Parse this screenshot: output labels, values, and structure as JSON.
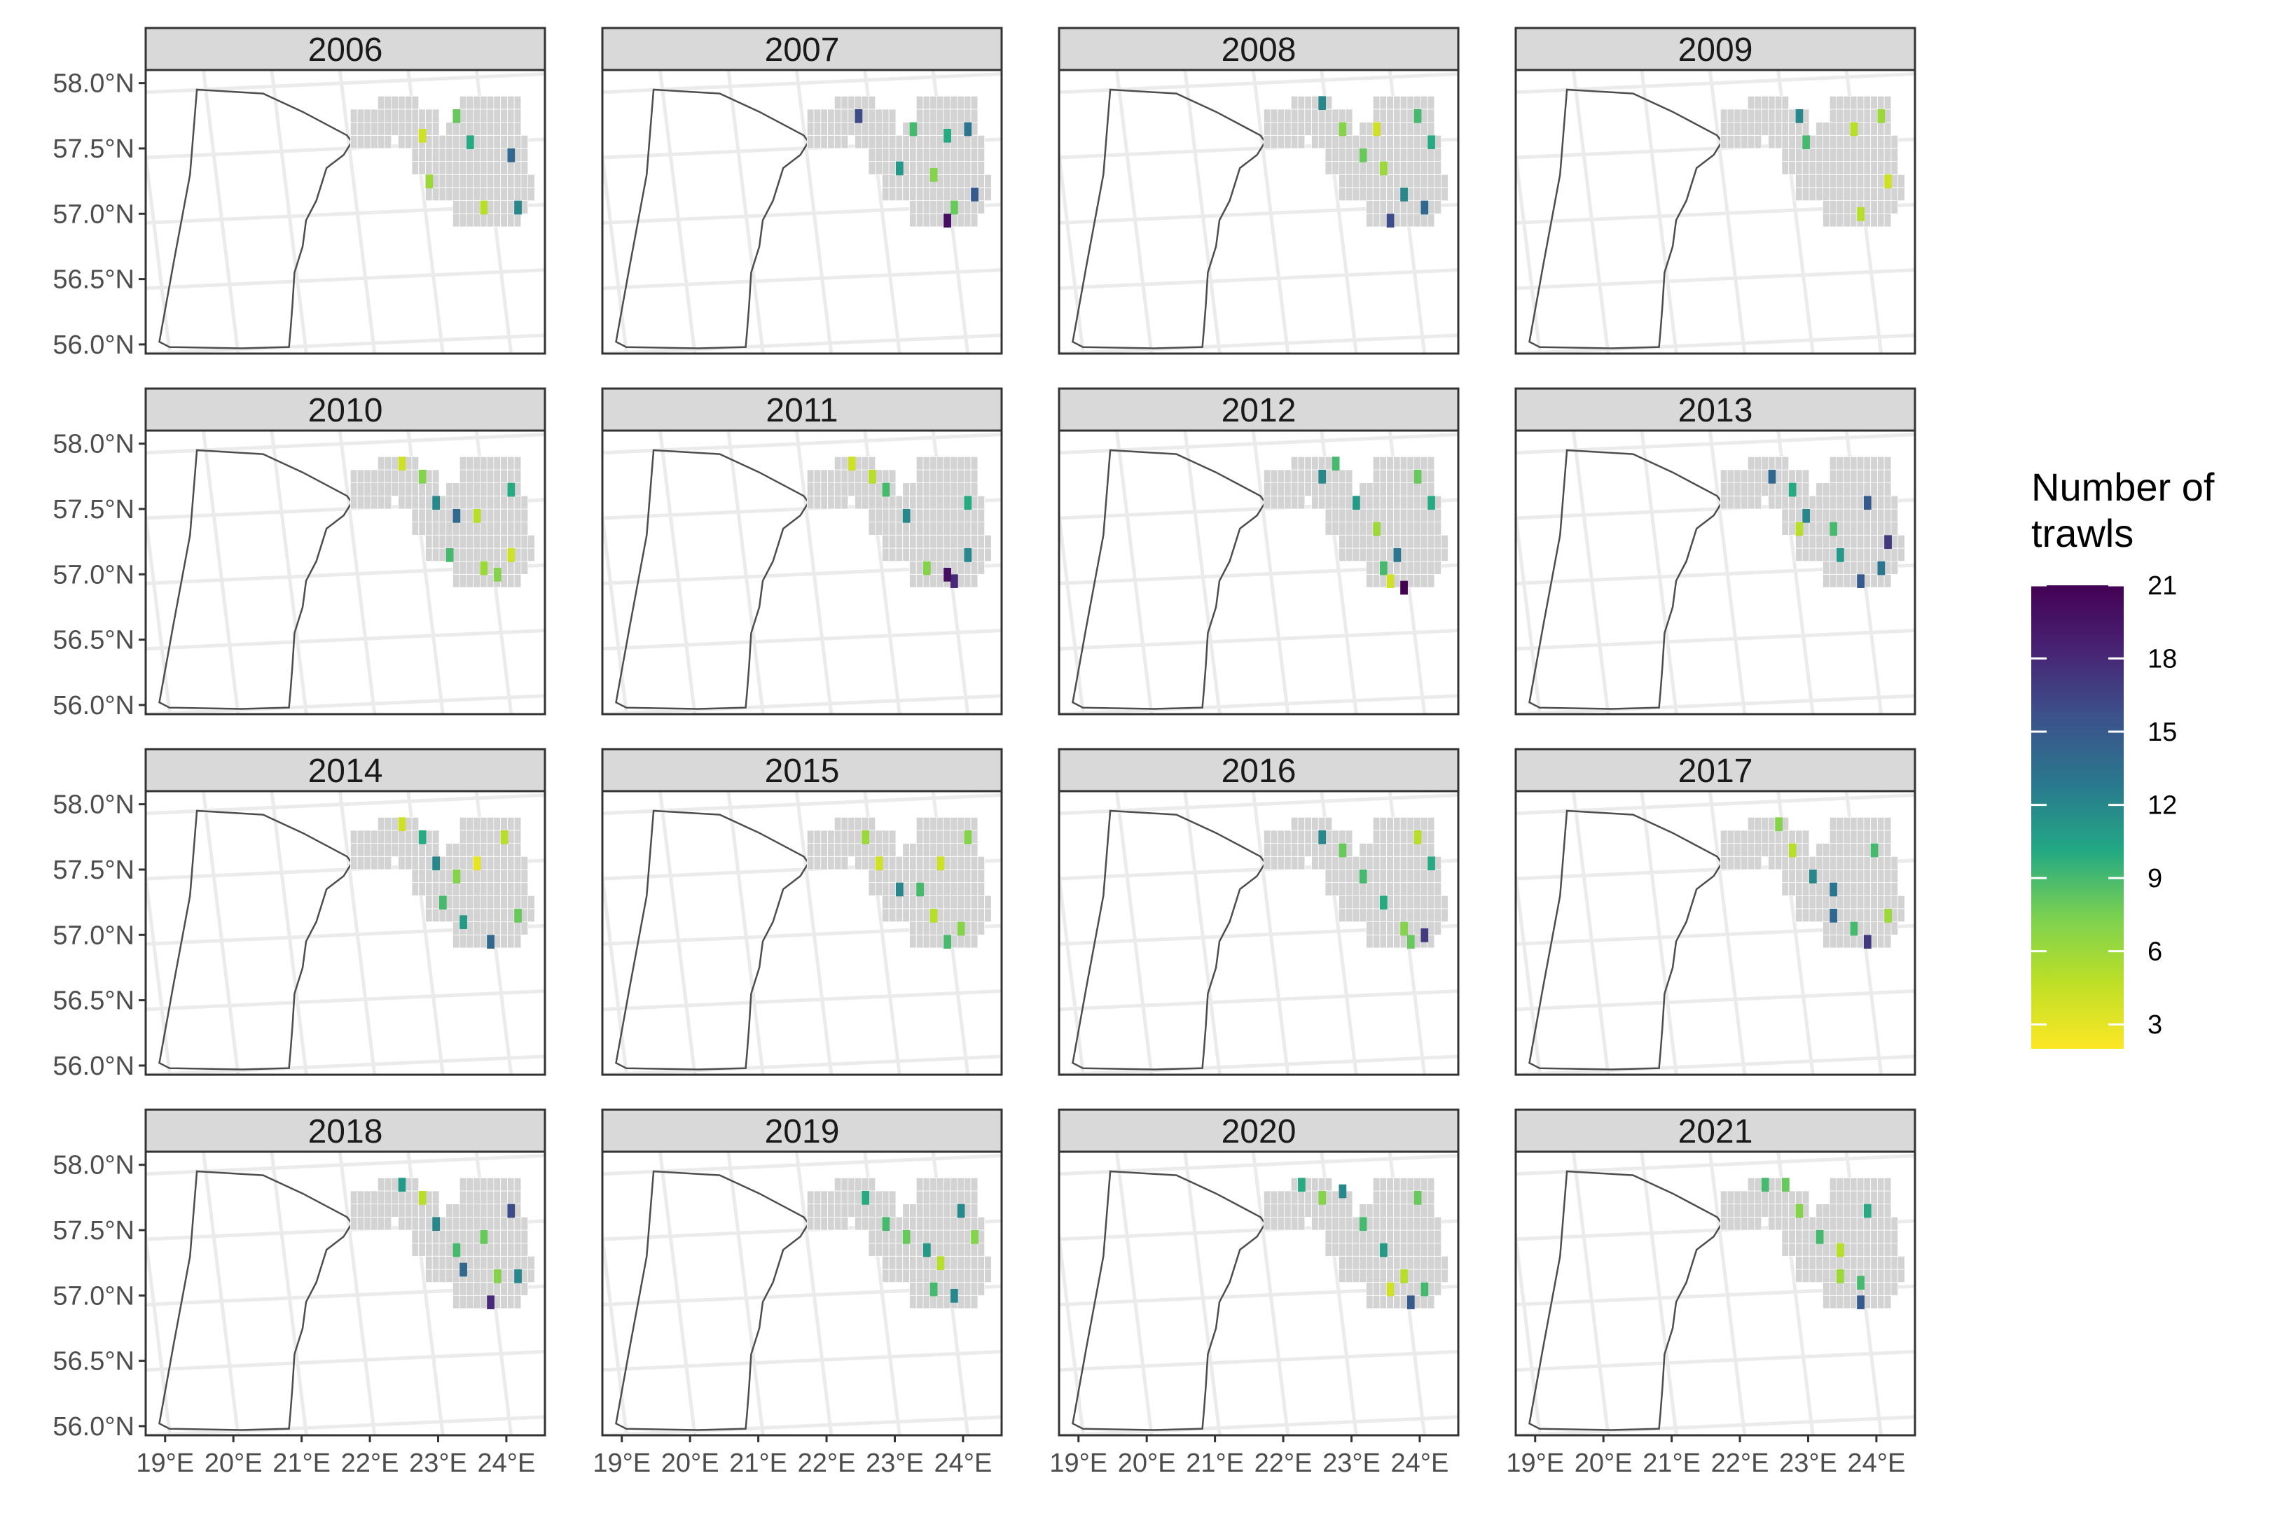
{
  "legend": {
    "title_lines": [
      "Number of",
      "trawls"
    ],
    "breaks": [
      3,
      6,
      9,
      12,
      15,
      18,
      21
    ],
    "limits": [
      2,
      21
    ],
    "palette": [
      "#FDE725",
      "#BDDF26",
      "#7AD151",
      "#22A884",
      "#2A788E",
      "#3B528B",
      "#482475",
      "#440154"
    ],
    "palette_name": "viridis (reversed)"
  },
  "axes": {
    "y_ticks": [
      "58.0°N",
      "57.5°N",
      "57.0°N",
      "56.5°N",
      "56.0°N"
    ],
    "x_ticks": [
      "19°E",
      "20°E",
      "21°E",
      "22°E",
      "23°E",
      "24°E"
    ]
  },
  "colors": {
    "strip_fill": "#D9D9D9",
    "panel_border": "#333333",
    "grid": "#EBEBEB",
    "cell_empty": "#D3D3D3",
    "outline": "#4D4D4D"
  },
  "map_data": {
    "type": "faceted-choropleth",
    "value_name": "Number of trawls",
    "facets": [
      {
        "year": "2006",
        "cells": [
          [
            23.4,
            57.7,
            8
          ],
          [
            23.6,
            57.5,
            10
          ],
          [
            24.2,
            57.4,
            14
          ],
          [
            23.0,
            57.2,
            6
          ],
          [
            24.3,
            57.0,
            12
          ],
          [
            23.8,
            57.0,
            5
          ],
          [
            22.9,
            57.55,
            4
          ]
        ]
      },
      {
        "year": "2007",
        "cells": [
          [
            22.6,
            57.7,
            16
          ],
          [
            23.4,
            57.6,
            9
          ],
          [
            23.9,
            57.55,
            10
          ],
          [
            24.2,
            57.6,
            13
          ],
          [
            23.2,
            57.3,
            11
          ],
          [
            23.7,
            57.25,
            7
          ],
          [
            24.0,
            57.0,
            8
          ],
          [
            24.3,
            57.1,
            15
          ],
          [
            23.9,
            56.9,
            20
          ]
        ]
      },
      {
        "year": "2008",
        "cells": [
          [
            22.7,
            57.8,
            12
          ],
          [
            23.0,
            57.6,
            7
          ],
          [
            23.5,
            57.6,
            4
          ],
          [
            24.1,
            57.7,
            9
          ],
          [
            24.3,
            57.5,
            10
          ],
          [
            23.6,
            57.3,
            6
          ],
          [
            23.9,
            57.1,
            12
          ],
          [
            24.2,
            57.0,
            14
          ],
          [
            23.7,
            56.9,
            16
          ],
          [
            23.3,
            57.4,
            8
          ]
        ]
      },
      {
        "year": "2009",
        "cells": [
          [
            23.0,
            57.7,
            12
          ],
          [
            23.8,
            57.6,
            5
          ],
          [
            24.2,
            57.7,
            6
          ],
          [
            23.1,
            57.5,
            9
          ],
          [
            24.3,
            57.2,
            4
          ],
          [
            23.9,
            56.95,
            5
          ]
        ]
      },
      {
        "year": "2010",
        "cells": [
          [
            22.6,
            57.8,
            4
          ],
          [
            22.9,
            57.7,
            7
          ],
          [
            23.1,
            57.5,
            12
          ],
          [
            23.4,
            57.4,
            14
          ],
          [
            23.7,
            57.4,
            5
          ],
          [
            24.2,
            57.6,
            10
          ],
          [
            23.3,
            57.1,
            9
          ],
          [
            23.8,
            57.0,
            6
          ],
          [
            24.0,
            56.95,
            7
          ],
          [
            24.2,
            57.1,
            4
          ]
        ]
      },
      {
        "year": "2011",
        "cells": [
          [
            22.5,
            57.8,
            4
          ],
          [
            22.8,
            57.7,
            5
          ],
          [
            23.0,
            57.6,
            9
          ],
          [
            23.3,
            57.4,
            12
          ],
          [
            24.2,
            57.5,
            10
          ],
          [
            23.6,
            57.0,
            7
          ],
          [
            24.0,
            56.9,
            18
          ],
          [
            23.9,
            56.95,
            20
          ],
          [
            24.2,
            57.1,
            12
          ]
        ]
      },
      {
        "year": "2012",
        "cells": [
          [
            22.7,
            57.7,
            12
          ],
          [
            22.9,
            57.8,
            9
          ],
          [
            23.2,
            57.5,
            11
          ],
          [
            23.5,
            57.3,
            6
          ],
          [
            24.1,
            57.7,
            8
          ],
          [
            24.3,
            57.5,
            10
          ],
          [
            23.8,
            57.1,
            13
          ],
          [
            23.6,
            57.0,
            9
          ],
          [
            23.9,
            56.85,
            21
          ],
          [
            23.7,
            56.9,
            4
          ]
        ]
      },
      {
        "year": "2013",
        "cells": [
          [
            22.6,
            57.7,
            14
          ],
          [
            22.9,
            57.6,
            10
          ],
          [
            23.1,
            57.4,
            12
          ],
          [
            23.5,
            57.3,
            9
          ],
          [
            24.0,
            57.5,
            15
          ],
          [
            23.6,
            57.1,
            11
          ],
          [
            24.3,
            57.2,
            17
          ],
          [
            24.2,
            57.0,
            13
          ],
          [
            23.9,
            56.9,
            15
          ],
          [
            23.0,
            57.3,
            5
          ]
        ]
      },
      {
        "year": "2014",
        "cells": [
          [
            22.6,
            57.8,
            4
          ],
          [
            22.9,
            57.7,
            10
          ],
          [
            23.1,
            57.5,
            12
          ],
          [
            23.4,
            57.4,
            7
          ],
          [
            23.7,
            57.5,
            3
          ],
          [
            24.1,
            57.7,
            5
          ],
          [
            23.2,
            57.2,
            9
          ],
          [
            23.5,
            57.05,
            11
          ],
          [
            23.9,
            56.9,
            14
          ],
          [
            24.3,
            57.1,
            8
          ]
        ]
      },
      {
        "year": "2015",
        "cells": [
          [
            22.7,
            57.7,
            6
          ],
          [
            22.9,
            57.5,
            4
          ],
          [
            23.2,
            57.3,
            12
          ],
          [
            23.5,
            57.3,
            9
          ],
          [
            23.8,
            57.5,
            4
          ],
          [
            24.2,
            57.7,
            7
          ],
          [
            23.7,
            57.1,
            5
          ],
          [
            24.1,
            57.0,
            7
          ],
          [
            23.9,
            56.9,
            9
          ]
        ]
      },
      {
        "year": "2016",
        "cells": [
          [
            22.7,
            57.7,
            12
          ],
          [
            23.0,
            57.6,
            8
          ],
          [
            23.3,
            57.4,
            9
          ],
          [
            23.6,
            57.2,
            10
          ],
          [
            24.1,
            57.7,
            5
          ],
          [
            24.3,
            57.5,
            10
          ],
          [
            23.9,
            57.0,
            7
          ],
          [
            24.2,
            56.95,
            17
          ],
          [
            24.0,
            56.9,
            8
          ]
        ]
      },
      {
        "year": "2017",
        "cells": [
          [
            22.7,
            57.8,
            7
          ],
          [
            22.9,
            57.6,
            5
          ],
          [
            23.2,
            57.4,
            12
          ],
          [
            23.5,
            57.3,
            13
          ],
          [
            24.1,
            57.6,
            9
          ],
          [
            23.5,
            57.1,
            14
          ],
          [
            23.8,
            57.0,
            9
          ],
          [
            24.0,
            56.9,
            17
          ],
          [
            24.3,
            57.1,
            6
          ]
        ]
      },
      {
        "year": "2018",
        "cells": [
          [
            22.6,
            57.8,
            11
          ],
          [
            22.9,
            57.7,
            5
          ],
          [
            23.1,
            57.5,
            12
          ],
          [
            23.4,
            57.3,
            9
          ],
          [
            23.8,
            57.4,
            8
          ],
          [
            24.2,
            57.6,
            16
          ],
          [
            23.5,
            57.15,
            14
          ],
          [
            24.0,
            57.1,
            7
          ],
          [
            23.9,
            56.9,
            18
          ],
          [
            24.3,
            57.1,
            12
          ]
        ]
      },
      {
        "year": "2019",
        "cells": [
          [
            22.7,
            57.7,
            10
          ],
          [
            23.0,
            57.5,
            9
          ],
          [
            23.3,
            57.4,
            8
          ],
          [
            23.6,
            57.3,
            11
          ],
          [
            24.1,
            57.6,
            12
          ],
          [
            24.3,
            57.4,
            7
          ],
          [
            23.8,
            57.2,
            5
          ],
          [
            24.0,
            56.95,
            12
          ],
          [
            23.7,
            57.0,
            9
          ]
        ]
      },
      {
        "year": "2020",
        "cells": [
          [
            22.4,
            57.8,
            10
          ],
          [
            22.7,
            57.7,
            7
          ],
          [
            23.0,
            57.75,
            12
          ],
          [
            23.3,
            57.5,
            9
          ],
          [
            23.6,
            57.3,
            11
          ],
          [
            24.1,
            57.7,
            8
          ],
          [
            23.9,
            57.1,
            5
          ],
          [
            23.7,
            57.0,
            4
          ],
          [
            24.0,
            56.9,
            15
          ],
          [
            24.2,
            57.0,
            9
          ]
        ]
      },
      {
        "year": "2021",
        "cells": [
          [
            22.5,
            57.8,
            9
          ],
          [
            22.8,
            57.8,
            8
          ],
          [
            23.0,
            57.6,
            7
          ],
          [
            23.3,
            57.4,
            9
          ],
          [
            23.6,
            57.3,
            5
          ],
          [
            24.0,
            57.6,
            10
          ],
          [
            23.6,
            57.1,
            6
          ],
          [
            23.9,
            57.05,
            9
          ],
          [
            23.9,
            56.9,
            15
          ]
        ]
      }
    ]
  }
}
